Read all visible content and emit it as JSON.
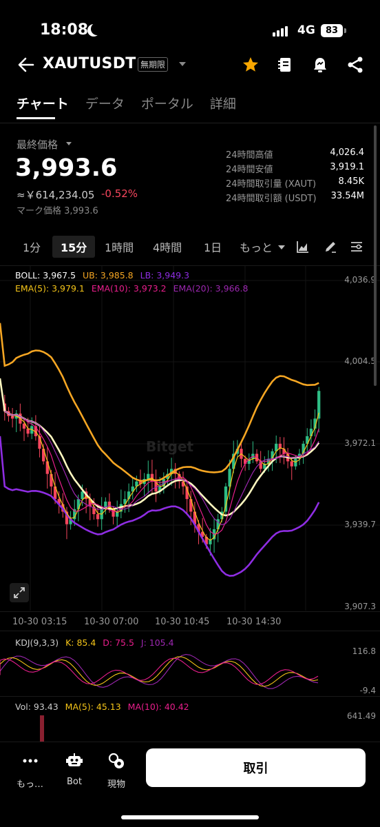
{
  "status": {
    "time": "18:08",
    "network": "4G",
    "battery": "83"
  },
  "header": {
    "pair": "XAUTUSDT",
    "contract_type": "無期限"
  },
  "tabs": [
    {
      "label": "チャート"
    },
    {
      "label": "データ"
    },
    {
      "label": "ポータル"
    },
    {
      "label": "詳細"
    }
  ],
  "price": {
    "label": "最終価格",
    "last": "3,993.6",
    "fiat": "≈￥614,234.05",
    "change": "-0.52%",
    "mark": "マーク価格 3,993.6"
  },
  "stats": [
    {
      "label": "24時間高値",
      "value": "4,026.4"
    },
    {
      "label": "24時間安値",
      "value": "3,919.1"
    },
    {
      "label": "24時間取引量 (XAUT)",
      "value": "8.45K"
    },
    {
      "label": "24時間取引額 (USDT)",
      "value": "33.54M"
    }
  ],
  "intervals": [
    "1分",
    "15分",
    "1時間",
    "4時間",
    "1日",
    "もっと"
  ],
  "legend": {
    "boll": "BOLL: 3,967.5",
    "ub": "UB: 3,985.8",
    "lb": "LB: 3,949.3",
    "ema5": "EMA(5): 3,979.1",
    "ema10": "EMA(10): 3,973.2",
    "ema20": "EMA(20): 3,966.8",
    "kdj": "KDJ(9,3,3)",
    "k": "K: 85.4",
    "d": "D: 75.5",
    "j": "J: 105.4",
    "vol": "Vol: 93.43",
    "ma5": "MA(5): 45.13",
    "ma10": "MA(10): 40.42"
  },
  "colors": {
    "up": "#2ebd85",
    "down": "#f6465d",
    "boll": "#f5a623",
    "lb": "#8e2de2",
    "ema5": "#f5c518",
    "ema10": "#e91e8c",
    "ema20": "#9c27b0",
    "mid": "#fff8c0"
  },
  "price_axis": [
    "4,036.9",
    "4,004.5",
    "3,972.1",
    "3,939.7",
    "3,907.3"
  ],
  "time_axis": [
    "10-30 03:15",
    "10-30 07:00",
    "10-30 10:45",
    "10-30 14:30"
  ],
  "kdj_axis": [
    "116.8",
    "-9.4"
  ],
  "vol_axis": [
    "641.49"
  ],
  "watermark": "Bitget",
  "bottom": {
    "more": "もっ…",
    "bot": "Bot",
    "spot": "現物",
    "trade": "取引"
  }
}
